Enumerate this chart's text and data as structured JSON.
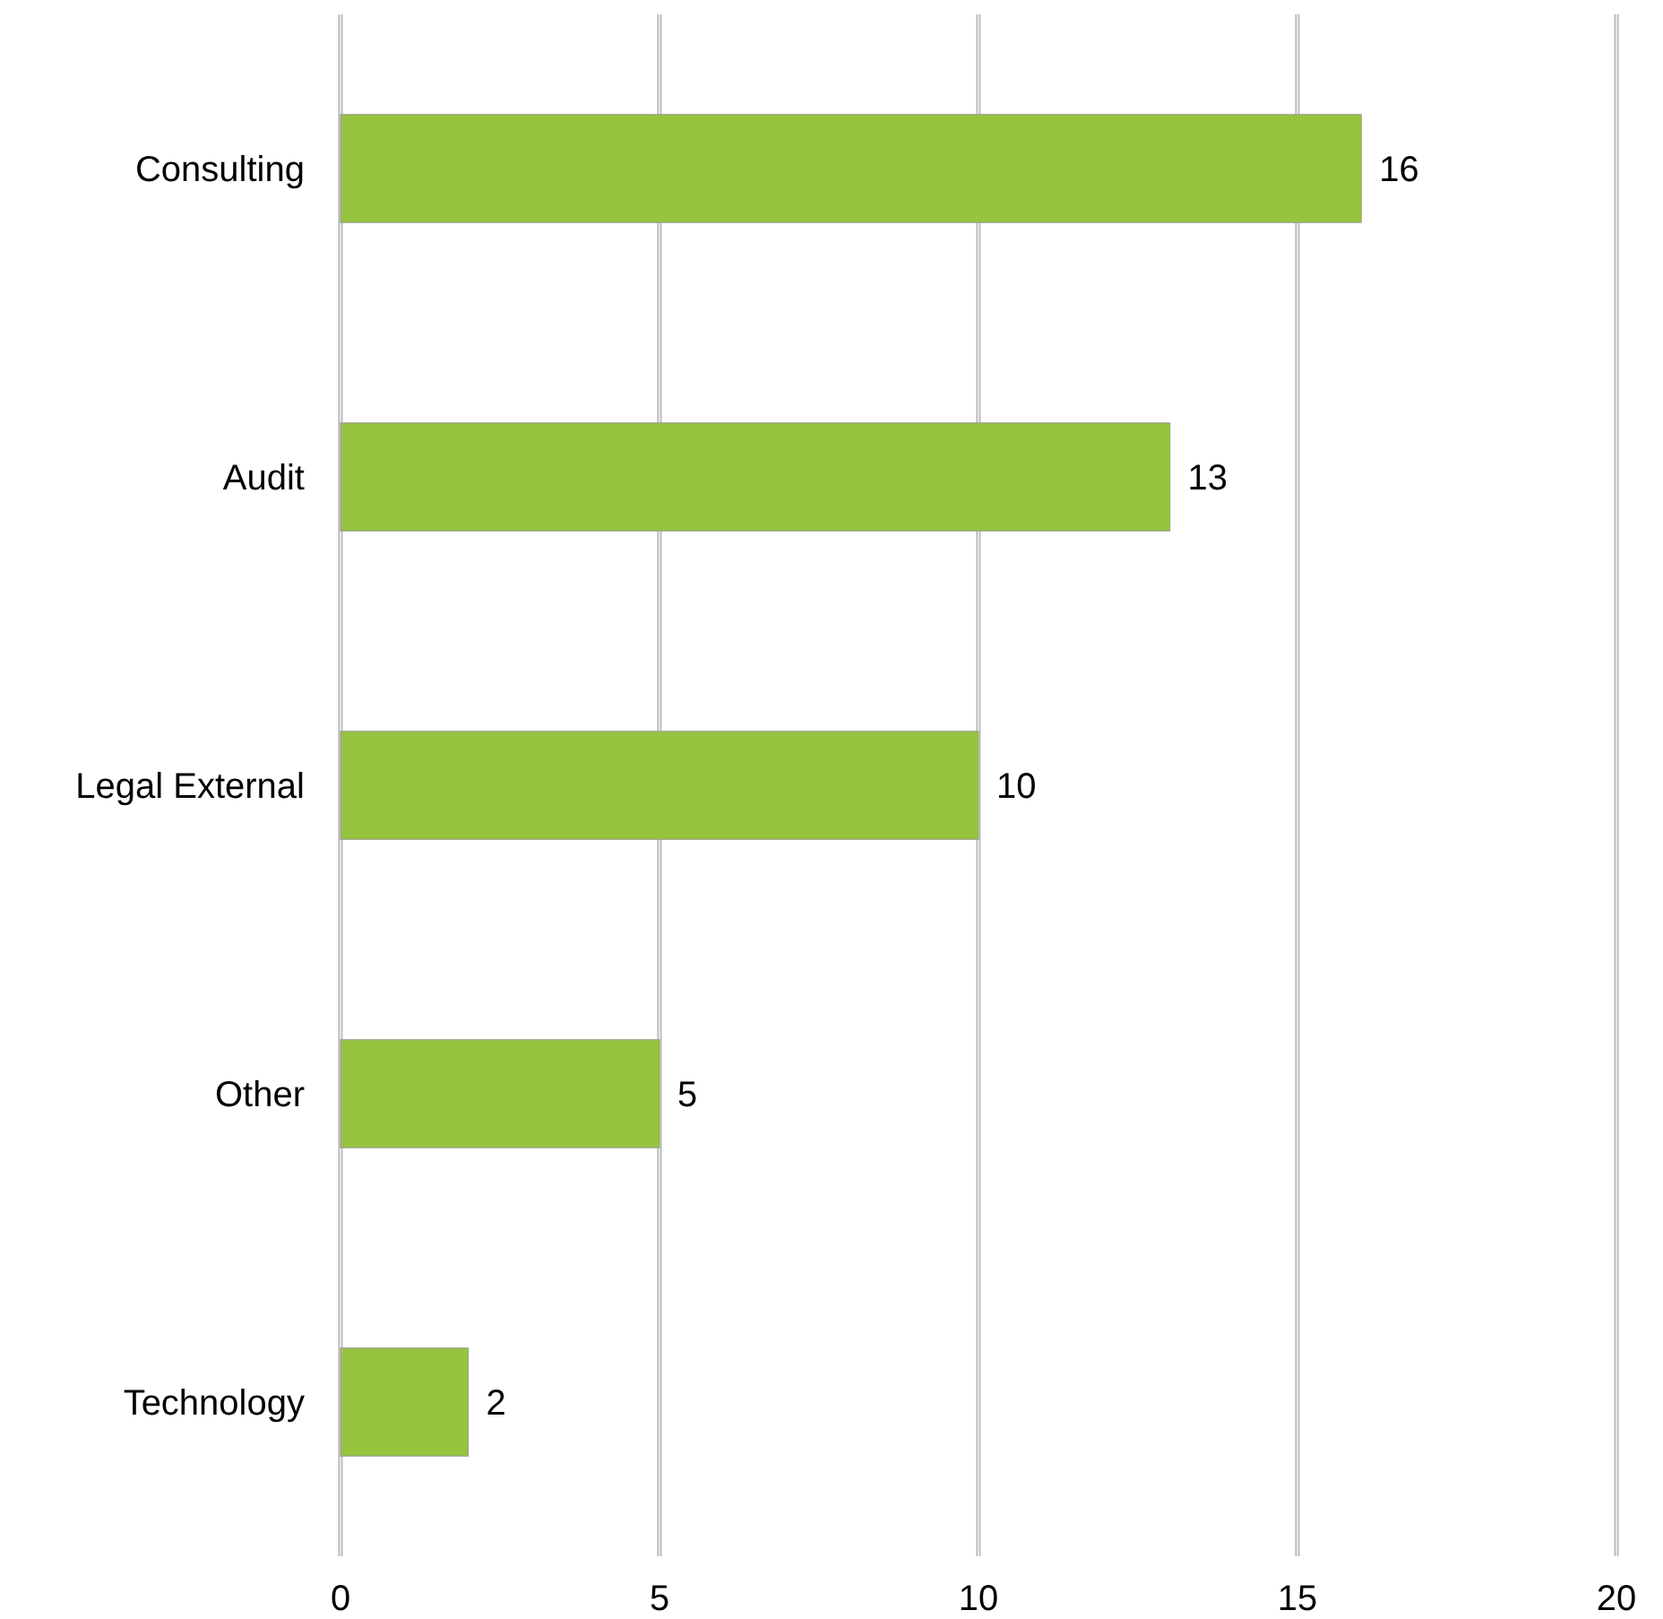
{
  "chart_data": {
    "type": "bar",
    "orientation": "horizontal",
    "categories": [
      "Consulting",
      "Audit",
      "Legal External",
      "Other",
      "Technology"
    ],
    "values": [
      16,
      13,
      10,
      5,
      2
    ],
    "color": "#96c43e",
    "xlim": [
      0,
      20
    ],
    "xticks": [
      0,
      5,
      10,
      15,
      20
    ],
    "grid": "x",
    "data_labels": true
  }
}
